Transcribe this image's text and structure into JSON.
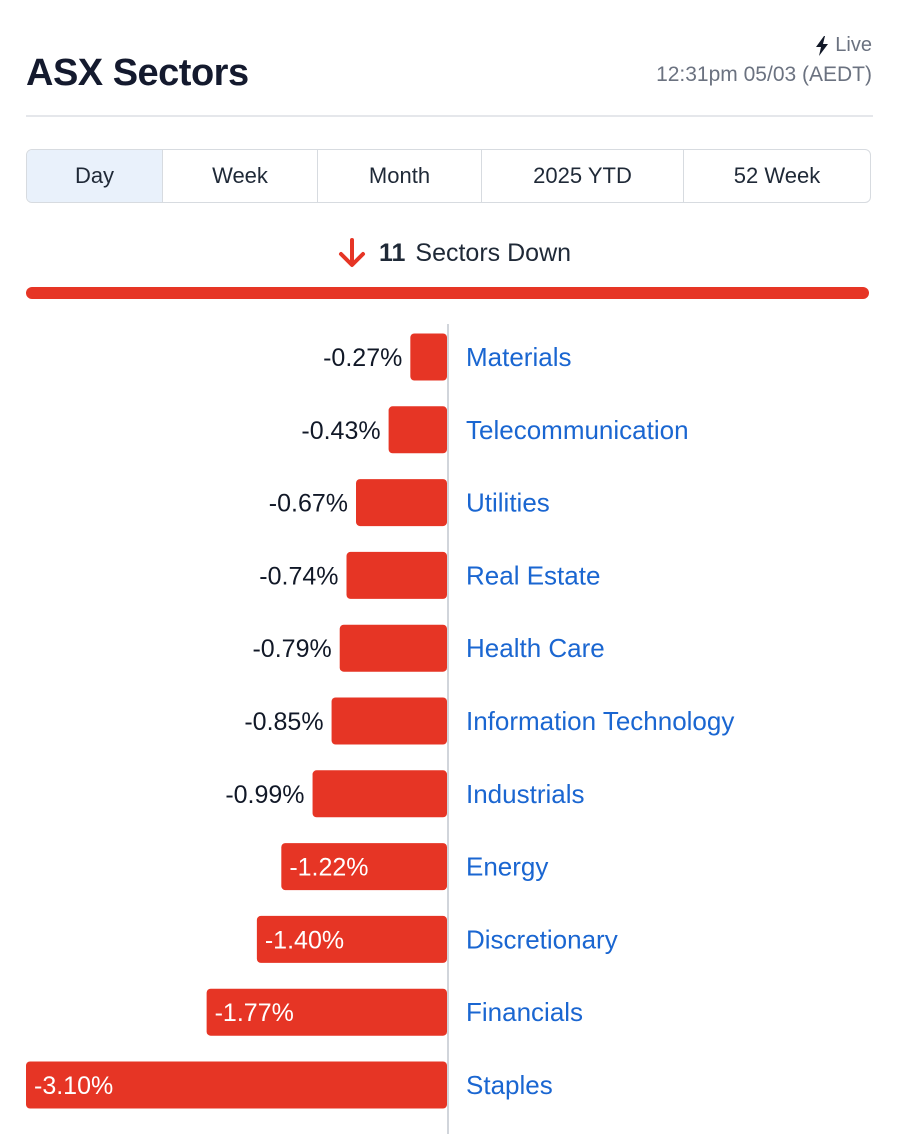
{
  "header": {
    "title": "ASX Sectors",
    "live_label": "Live",
    "timestamp": "12:31pm 05/03 (AEDT)"
  },
  "tabs": [
    {
      "label": "Day",
      "active": true
    },
    {
      "label": "Week",
      "active": false
    },
    {
      "label": "Month",
      "active": false
    },
    {
      "label": "2025 YTD",
      "active": false
    },
    {
      "label": "52 Week",
      "active": false
    }
  ],
  "summary": {
    "count": "11",
    "text": "Sectors Down",
    "direction": "down",
    "icon": "arrow-down-icon"
  },
  "colors": {
    "negative": "#e63525",
    "sector_link": "#1a66d1",
    "active_tab": "#e9f1fb"
  },
  "chart_data": {
    "type": "bar",
    "orientation": "horizontal",
    "categories": [
      "Materials",
      "Telecommunication",
      "Utilities",
      "Real Estate",
      "Health Care",
      "Information Technology",
      "Industrials",
      "Energy",
      "Discretionary",
      "Financials",
      "Staples"
    ],
    "values": [
      -0.27,
      -0.43,
      -0.67,
      -0.74,
      -0.79,
      -0.85,
      -0.99,
      -1.22,
      -1.4,
      -1.77,
      -3.1
    ],
    "value_labels": [
      "-0.27%",
      "-0.43%",
      "-0.67%",
      "-0.74%",
      "-0.79%",
      "-0.85%",
      "-0.99%",
      "-1.22%",
      "-1.40%",
      "-1.77%",
      "-3.10%"
    ],
    "unit": "%"
  }
}
